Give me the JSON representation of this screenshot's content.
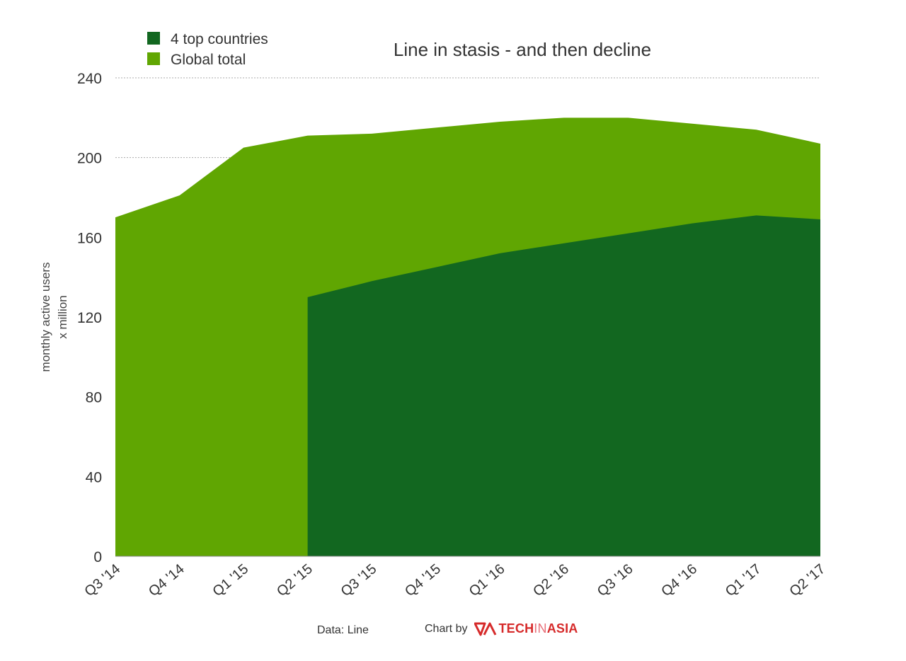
{
  "chart_data": {
    "type": "area",
    "title": "Line in stasis - and then decline",
    "ylabel_line1": "monthly active users",
    "ylabel_line2": "x million",
    "categories": [
      "Q3 '14",
      "Q4 '14",
      "Q1 '15",
      "Q2 '15",
      "Q3 '15",
      "Q4 '15",
      "Q1 '16",
      "Q2 '16",
      "Q3 '16",
      "Q4 '16",
      "Q1 '17",
      "Q2 '17"
    ],
    "ylim": [
      0,
      240
    ],
    "yticks": [
      0,
      40,
      80,
      120,
      160,
      200,
      240
    ],
    "grid": true,
    "legend_position": "top-left",
    "series": [
      {
        "name": "4 top countries",
        "color": "#126720",
        "values": [
          null,
          null,
          null,
          130,
          138,
          145,
          152,
          157,
          162,
          167,
          171,
          169
        ]
      },
      {
        "name": "Global total",
        "color": "#60a602",
        "values": [
          170,
          181,
          205,
          211,
          212,
          215,
          218,
          220,
          220,
          217,
          214,
          207
        ]
      }
    ]
  },
  "footer": {
    "source": "Data: Line",
    "credit": "Chart by",
    "brand_tech": "TECH",
    "brand_in": "IN",
    "brand_asia": "ASIA"
  }
}
